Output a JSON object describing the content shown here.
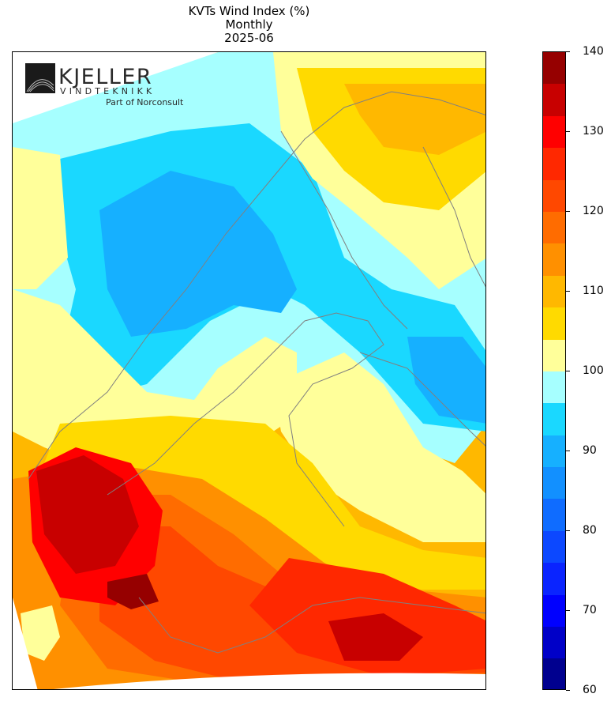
{
  "title": {
    "line1": "KVTs Wind Index (%)",
    "line2": "Monthly",
    "line3": "2025-06"
  },
  "logo": {
    "name": "KJELLER",
    "sub": "VINDTEKNIKK",
    "tagline": "Part of Norconsult"
  },
  "colorbar": {
    "min": 60,
    "max": 140,
    "ticks": [
      60,
      70,
      80,
      90,
      100,
      110,
      120,
      130,
      140
    ],
    "colors": [
      "#00008f",
      "#0000c8",
      "#0000ff",
      "#0a24ff",
      "#0c48ff",
      "#0f6cff",
      "#1290ff",
      "#16b0ff",
      "#1ad8ff",
      "#a6ffff",
      "#ffff9a",
      "#ffda00",
      "#ffb800",
      "#ff9000",
      "#ff6c00",
      "#ff4800",
      "#ff2800",
      "#ff0000",
      "#c80000",
      "#960000"
    ]
  },
  "map": {
    "region": "Scandinavia and Baltic",
    "coastline_color": "#808080"
  }
}
